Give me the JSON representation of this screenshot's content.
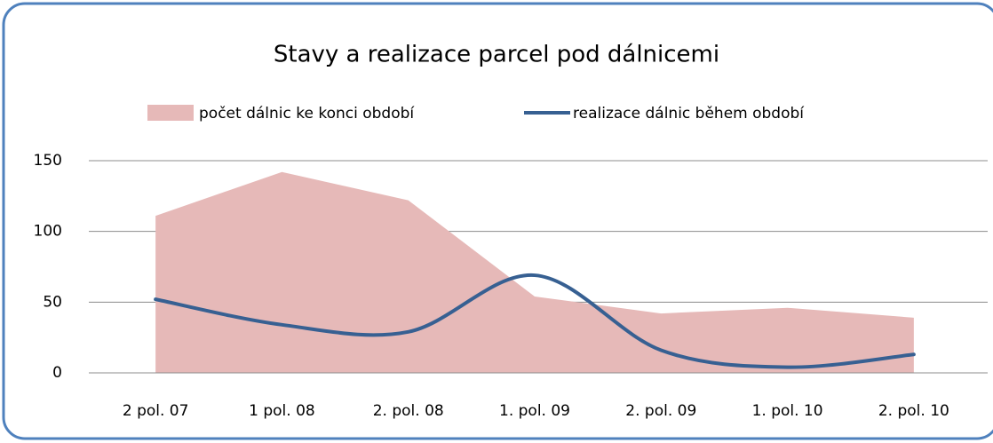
{
  "chart_data": {
    "type": "area-line",
    "title": "Stavy a realizace parcel pod dálnicemi",
    "categories": [
      "2 pol. 07",
      "1 pol. 08",
      "2. pol. 08",
      "1. pol. 09",
      "2. pol. 09",
      "1. pol. 10",
      "2. pol. 10"
    ],
    "series": [
      {
        "name": "počet dálnic ke konci období",
        "color": "#e6b9b8",
        "kind": "area",
        "values": [
          111,
          142,
          122,
          54,
          42,
          46,
          39
        ]
      },
      {
        "name": "realizace dálnic během období",
        "color": "#376092",
        "kind": "line",
        "values": [
          52,
          34,
          29,
          69,
          16,
          4,
          13
        ]
      }
    ],
    "ylim": [
      0,
      150
    ],
    "yticks": [
      0,
      50,
      100,
      150
    ],
    "grid": true,
    "legend": "top"
  }
}
